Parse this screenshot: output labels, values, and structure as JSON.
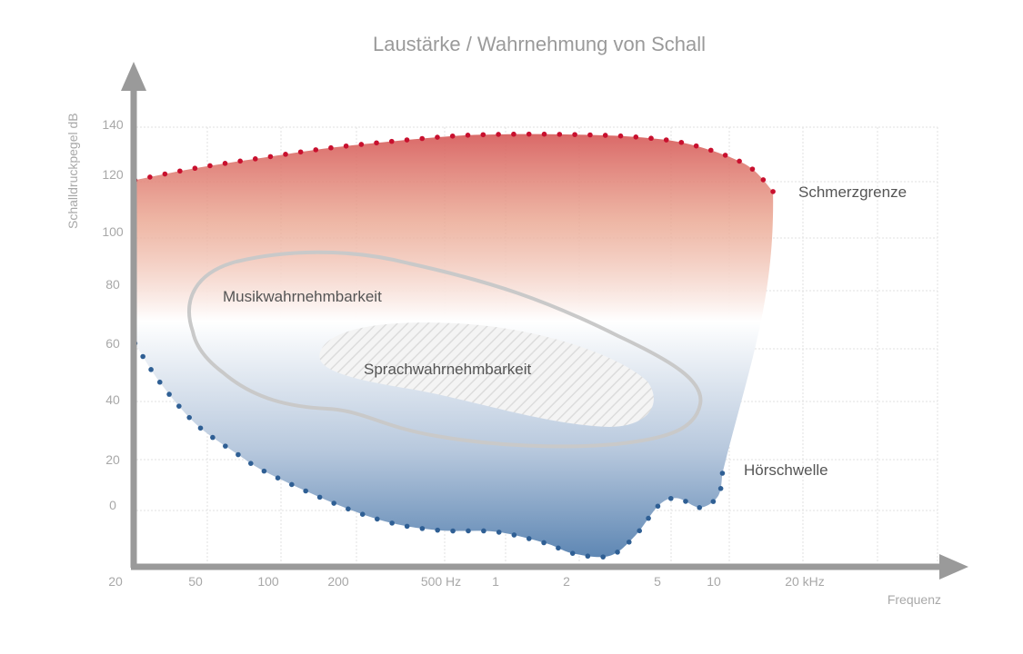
{
  "chart_data": {
    "type": "area",
    "title": "Laustärke / Wahrnehmung von Schall",
    "xlabel": "Frequenz",
    "ylabel": "Schalldruckpegel dB",
    "x_scale": "log",
    "x_ticks": [
      "20",
      "50",
      "100",
      "200",
      "500 Hz",
      "1",
      "2",
      "5",
      "10",
      "20 kHz"
    ],
    "y_ticks": [
      "140",
      "120",
      "100",
      "80",
      "60",
      "40",
      "20",
      "0"
    ],
    "grid": true,
    "series": [
      {
        "name": "Schmerzgrenze",
        "color": "#c8102e",
        "points": [
          [
            25,
            118
          ],
          [
            50,
            122.5
          ],
          [
            100,
            127
          ],
          [
            200,
            131
          ],
          [
            500,
            135
          ],
          [
            1000,
            136
          ],
          [
            2000,
            136
          ],
          [
            4000,
            135
          ],
          [
            7500,
            132
          ],
          [
            13300,
            124
          ],
          [
            17000,
            114
          ]
        ]
      },
      {
        "name": "Hörschwelle",
        "color": "#2f5f94",
        "points": [
          [
            25,
            60
          ],
          [
            33,
            46.5
          ],
          [
            50,
            32
          ],
          [
            74,
            22
          ],
          [
            100,
            14
          ],
          [
            200,
            0
          ],
          [
            320,
            -7
          ],
          [
            500,
            -10
          ],
          [
            1000,
            -10.5
          ],
          [
            1630,
            -15
          ],
          [
            2130,
            -19
          ],
          [
            3080,
            -20
          ],
          [
            4000,
            -12
          ],
          [
            5100,
            0
          ],
          [
            6400,
            3
          ],
          [
            8450,
            -1
          ],
          [
            10400,
            4
          ],
          [
            10800,
            14
          ]
        ]
      }
    ],
    "regions": [
      {
        "name": "Musikwahrnehmbarkeit"
      },
      {
        "name": "Sprachwahrnehmbarkeit"
      }
    ],
    "colors": {
      "top": "#d9534f",
      "bottom": "#4f7fae",
      "axis": "#9a9a9a"
    }
  }
}
